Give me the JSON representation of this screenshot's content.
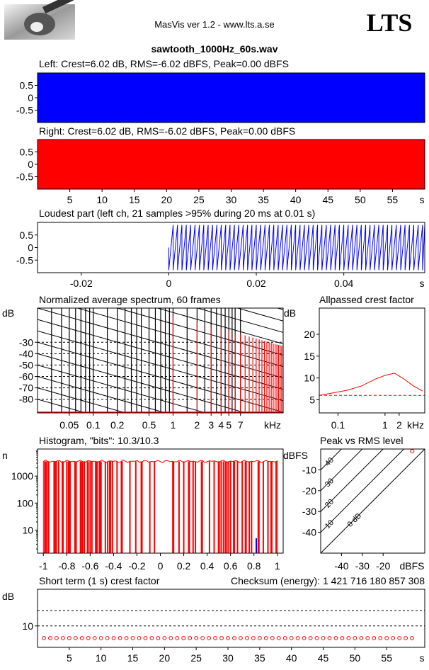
{
  "header": {
    "app_title": "MasVis ver 1.2 - www.lts.a.se",
    "logo_text": "LTS",
    "filename": "sawtooth_1000Hz_60s.wav",
    "photo_icon": "photo-thumbnail"
  },
  "chart_data": [
    {
      "id": "left",
      "type": "area",
      "title": "Left: Crest=6.02 dB, RMS=-6.02 dBFS, Peak=0.00 dBFS",
      "color": "#0000ff",
      "xlim": [
        0,
        60
      ],
      "ylim": [
        -1,
        1
      ],
      "y_ticks": [
        "0.5",
        "0",
        "-0.5"
      ],
      "y_tick_values": [
        0.5,
        0,
        -0.5
      ],
      "fill_range": [
        -1,
        1
      ]
    },
    {
      "id": "right",
      "type": "area",
      "title": "Right: Crest=6.02 dB, RMS=-6.02 dBFS, Peak=0.00 dBFS",
      "color": "#ff0000",
      "xlim": [
        0,
        60
      ],
      "ylim": [
        -1,
        1
      ],
      "y_ticks": [
        "0.5",
        "0",
        "-0.5"
      ],
      "y_tick_values": [
        0.5,
        0,
        -0.5
      ],
      "x_ticks": [
        "5",
        "10",
        "15",
        "20",
        "25",
        "30",
        "35",
        "40",
        "45",
        "50",
        "55"
      ],
      "x_tick_values": [
        5,
        10,
        15,
        20,
        25,
        30,
        35,
        40,
        45,
        50,
        55
      ],
      "x_unit": "s",
      "fill_range": [
        -1,
        1
      ]
    },
    {
      "id": "loudest",
      "type": "line",
      "title": "Loudest part (left  ch, 21 samples >95% during 20 ms at 0.01 s)",
      "color": "#0000ff",
      "xlim": [
        -0.03,
        0.0585
      ],
      "ylim": [
        -1,
        1
      ],
      "y_ticks": [
        "0.5",
        "0",
        "-0.5"
      ],
      "y_tick_values": [
        0.5,
        0,
        -0.5
      ],
      "x_ticks": [
        "-0.02",
        "0",
        "0.02",
        "0.04"
      ],
      "x_tick_values": [
        -0.02,
        0,
        0.02,
        0.04
      ],
      "x_unit": "s",
      "waveform": {
        "start": 0,
        "end": 0.0585,
        "frequency_hz": 1000,
        "min": -0.9,
        "max": 0.9
      }
    },
    {
      "id": "spectrum",
      "type": "bar",
      "title": "Normalized average spectrum, 60 frames",
      "color": "#ff0000",
      "ylabel": "dB",
      "ylim": [
        -92,
        0
      ],
      "y_ticks": [
        "-30",
        "-40",
        "-50",
        "-60",
        "-70",
        "-80"
      ],
      "y_tick_values": [
        -30,
        -40,
        -50,
        -60,
        -70,
        -80
      ],
      "xlim_hz": [
        20,
        24000
      ],
      "x_ticks": [
        "0.05",
        "0.1",
        "0.2",
        "0.5",
        "1",
        "2",
        "3",
        "4",
        "5",
        "7"
      ],
      "x_tick_values_hz": [
        50,
        100,
        200,
        500,
        1000,
        2000,
        3000,
        4000,
        5000,
        7000
      ],
      "x_unit": "kHz",
      "harmonics": {
        "fundamental_hz": 1000,
        "count": 24,
        "top_db": -4,
        "slope_db_per_octave": -6,
        "floor_db": -92
      }
    },
    {
      "id": "crest",
      "type": "line",
      "title": "Allpassed crest factor",
      "color": "#ff0000",
      "ylabel": "dB",
      "ylim": [
        2,
        26
      ],
      "y_ticks": [
        "20",
        "15",
        "10",
        "5"
      ],
      "y_tick_values": [
        20,
        15,
        10,
        5
      ],
      "xlim_hz": [
        40,
        7000
      ],
      "x_ticks": [
        "0.1",
        "1",
        "2"
      ],
      "x_tick_values_hz": [
        100,
        1000,
        2000
      ],
      "x_unit": "kHz",
      "x_hz": [
        40,
        80,
        160,
        320,
        640,
        1000,
        1600,
        2500,
        4000,
        6300
      ],
      "y": [
        6.0,
        6.6,
        7.2,
        8.2,
        9.8,
        10.6,
        11.1,
        9.8,
        8.2,
        7.0
      ],
      "reference_db": 6.02
    },
    {
      "id": "histogram",
      "type": "bar",
      "title": "Histogram, \"bits\": 10.3/10.3",
      "color": "#ff0000",
      "ylabel": "n",
      "ylim_log": [
        1.4,
        10000
      ],
      "y_ticks": [
        "1000",
        "100",
        "10"
      ],
      "y_tick_values": [
        1000,
        100,
        10
      ],
      "xlim": [
        -1.05,
        1.05
      ],
      "x_ticks": [
        "-1",
        "-0.8",
        "-0.6",
        "-0.4",
        "-0.2",
        "0",
        "0.2",
        "0.4",
        "0.6",
        "0.8",
        "1"
      ],
      "x_tick_values": [
        -1,
        -0.8,
        -0.6,
        -0.4,
        -0.2,
        0,
        0.2,
        0.4,
        0.6,
        0.8,
        1
      ],
      "plateau_count": 3500,
      "blue_marker": {
        "x": 0.82,
        "count": 5
      }
    },
    {
      "id": "peak_rms",
      "type": "scatter",
      "title": "Peak vs RMS level",
      "color": "#ff0000",
      "ylabel": "dBFS",
      "xlabel": "dBFS",
      "xlim": [
        -50,
        0
      ],
      "ylim": [
        -50,
        0
      ],
      "y_ticks": [
        "-10",
        "-20",
        "-30",
        "-40"
      ],
      "y_tick_values": [
        -10,
        -20,
        -30,
        -40
      ],
      "x_ticks": [
        "-40",
        "-30",
        "-20"
      ],
      "x_tick_values": [
        -40,
        -30,
        -20
      ],
      "crest_lines": [
        "0 dB",
        "10",
        "20",
        "30",
        "40"
      ],
      "crest_line_values": [
        0,
        10,
        20,
        30,
        40
      ],
      "points": [
        {
          "rms": -6.02,
          "peak": 0
        }
      ]
    },
    {
      "id": "short_term_crest",
      "type": "scatter",
      "title": "Short term (1 s) crest factor",
      "checksum": "Checksum (energy):  1 421 716 180 857 308",
      "color": "#ff0000",
      "ylabel": "dB",
      "ylim": [
        3,
        22
      ],
      "y_ticks": [
        "10"
      ],
      "y_tick_values": [
        10
      ],
      "guide_lines_db": [
        10,
        15
      ],
      "xlim": [
        0,
        61
      ],
      "x_ticks": [
        "5",
        "10",
        "15",
        "20",
        "25",
        "30",
        "35",
        "40",
        "45",
        "50",
        "55"
      ],
      "x_tick_values": [
        5,
        10,
        15,
        20,
        25,
        30,
        35,
        40,
        45,
        50,
        55
      ],
      "x_unit": "s",
      "points_x_start": 1,
      "points_count": 59,
      "points_y": 6.02
    }
  ]
}
